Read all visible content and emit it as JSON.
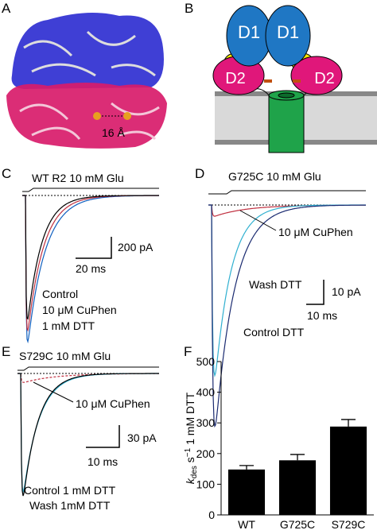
{
  "panels": {
    "A": {
      "label": "A",
      "distance": "16 Å"
    },
    "B": {
      "label": "B",
      "domains": [
        "D1",
        "D1",
        "D2",
        "D2"
      ]
    },
    "C": {
      "label": "C",
      "title": "WT R2  10 mM Glu",
      "scale_y": "200 pA",
      "scale_x": "20 ms",
      "legend": [
        "Control",
        "10 μM CuPhen",
        "1 mM DTT"
      ]
    },
    "D": {
      "label": "D",
      "title": "G725C 10 mM Glu",
      "annotation": "10 μM CuPhen",
      "wash": "Wash DTT",
      "control": "Control DTT",
      "scale_y": "10 pA",
      "scale_x": "10 ms"
    },
    "E": {
      "label": "E",
      "title": "S729C 10 mM Glu",
      "annotation": "10 μM CuPhen",
      "scale_y": "30 pA",
      "scale_x": "10 ms",
      "control": "Control 1 mM DTT",
      "wash": "Wash 1mM DTT"
    },
    "F": {
      "label": "F"
    }
  },
  "chart_data": {
    "type": "bar",
    "categories": [
      "WT",
      "G725C",
      "S729C"
    ],
    "values": [
      148,
      178,
      288
    ],
    "errors": [
      13,
      19,
      23
    ],
    "color": "#000000",
    "ylim": [
      0,
      500
    ],
    "yticks": [
      0,
      100,
      200,
      300,
      400,
      500
    ],
    "ylabel": {
      "k": "k",
      "sub": "des",
      "unit": " s",
      "sup": "−1",
      "cond": " 1 mM DTT"
    }
  }
}
